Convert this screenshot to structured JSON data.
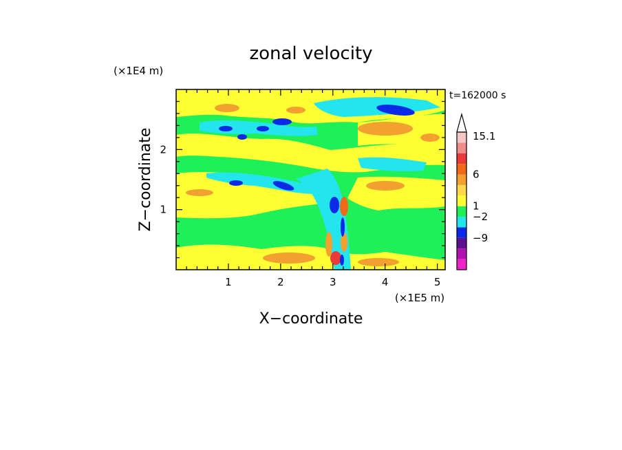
{
  "chart_data": {
    "type": "heatmap",
    "title": "zonal velocity",
    "xlabel": "X−coordinate",
    "ylabel": "Z−coordinate",
    "x_unit_label": "(×1E5 m)",
    "y_unit_label": "(×1E4 m)",
    "time_label": "t=162000 s",
    "xlim": [
      0,
      5.15
    ],
    "ylim": [
      0,
      3.0
    ],
    "x_ticks": [
      {
        "value": 1,
        "label": "1"
      },
      {
        "value": 2,
        "label": "2"
      },
      {
        "value": 3,
        "label": "3"
      },
      {
        "value": 4,
        "label": "4"
      },
      {
        "value": 5,
        "label": "5"
      }
    ],
    "y_ticks": [
      {
        "value": 1,
        "label": "1"
      },
      {
        "value": 2,
        "label": "2"
      }
    ],
    "colorbar": {
      "ticks": [
        {
          "value": 15.1,
          "label": "15.1"
        },
        {
          "value": 6,
          "label": "6"
        },
        {
          "value": 1,
          "label": "1"
        },
        {
          "value": -2,
          "label": "−2"
        },
        {
          "value": -9,
          "label": "−9"
        }
      ],
      "bands": [
        {
          "color": "#f4c6c4"
        },
        {
          "color": "#ef8d8d"
        },
        {
          "color": "#ea3a3a"
        },
        {
          "color": "#f06a18"
        },
        {
          "color": "#f2a030"
        },
        {
          "color": "#ffd94a"
        },
        {
          "color": "#ffff33"
        },
        {
          "color": "#1ff05a"
        },
        {
          "color": "#22e5ee"
        },
        {
          "color": "#0a2ae8"
        },
        {
          "color": "#5c128f"
        },
        {
          "color": "#b012b0"
        },
        {
          "color": "#ee22c6"
        }
      ]
    },
    "colors": {
      "yellow": "#ffff33",
      "green": "#1ff05a",
      "cyan": "#22e5ee",
      "blue": "#0a2ae8",
      "orange": "#f2a030",
      "dark_orange": "#f06a18",
      "red": "#ea3a3a"
    }
  }
}
